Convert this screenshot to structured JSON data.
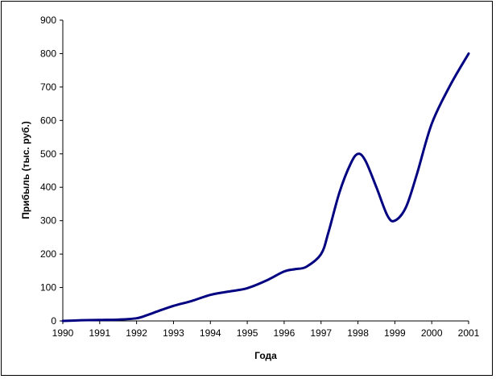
{
  "chart_data": {
    "type": "line",
    "title": "",
    "xlabel": "Года",
    "ylabel": "Прибыль (тыс. руб.)",
    "xlim": [
      1990,
      2001
    ],
    "ylim": [
      0,
      900
    ],
    "x_ticks": [
      1990,
      1991,
      1992,
      1993,
      1994,
      1995,
      1996,
      1997,
      1998,
      1999,
      2000,
      2001
    ],
    "y_ticks": [
      0,
      100,
      200,
      300,
      400,
      500,
      600,
      700,
      800,
      900
    ],
    "grid": false,
    "legend": "none",
    "series": [
      {
        "color": "#000080",
        "x": [
          1990,
          1990.5,
          1991,
          1991.5,
          1992,
          1992.3,
          1992.6,
          1993,
          1993.5,
          1994,
          1994.5,
          1995,
          1995.5,
          1996,
          1996.3,
          1996.6,
          1997,
          1997.2,
          1997.5,
          1997.8,
          1998,
          1998.2,
          1998.5,
          1998.8,
          1999,
          1999.3,
          1999.6,
          2000,
          2000.5,
          2001
        ],
        "y": [
          0,
          2,
          3,
          4,
          8,
          18,
          30,
          45,
          60,
          78,
          88,
          98,
          120,
          148,
          155,
          162,
          200,
          265,
          385,
          470,
          500,
          480,
          400,
          315,
          300,
          340,
          440,
          590,
          705,
          800
        ]
      }
    ]
  }
}
